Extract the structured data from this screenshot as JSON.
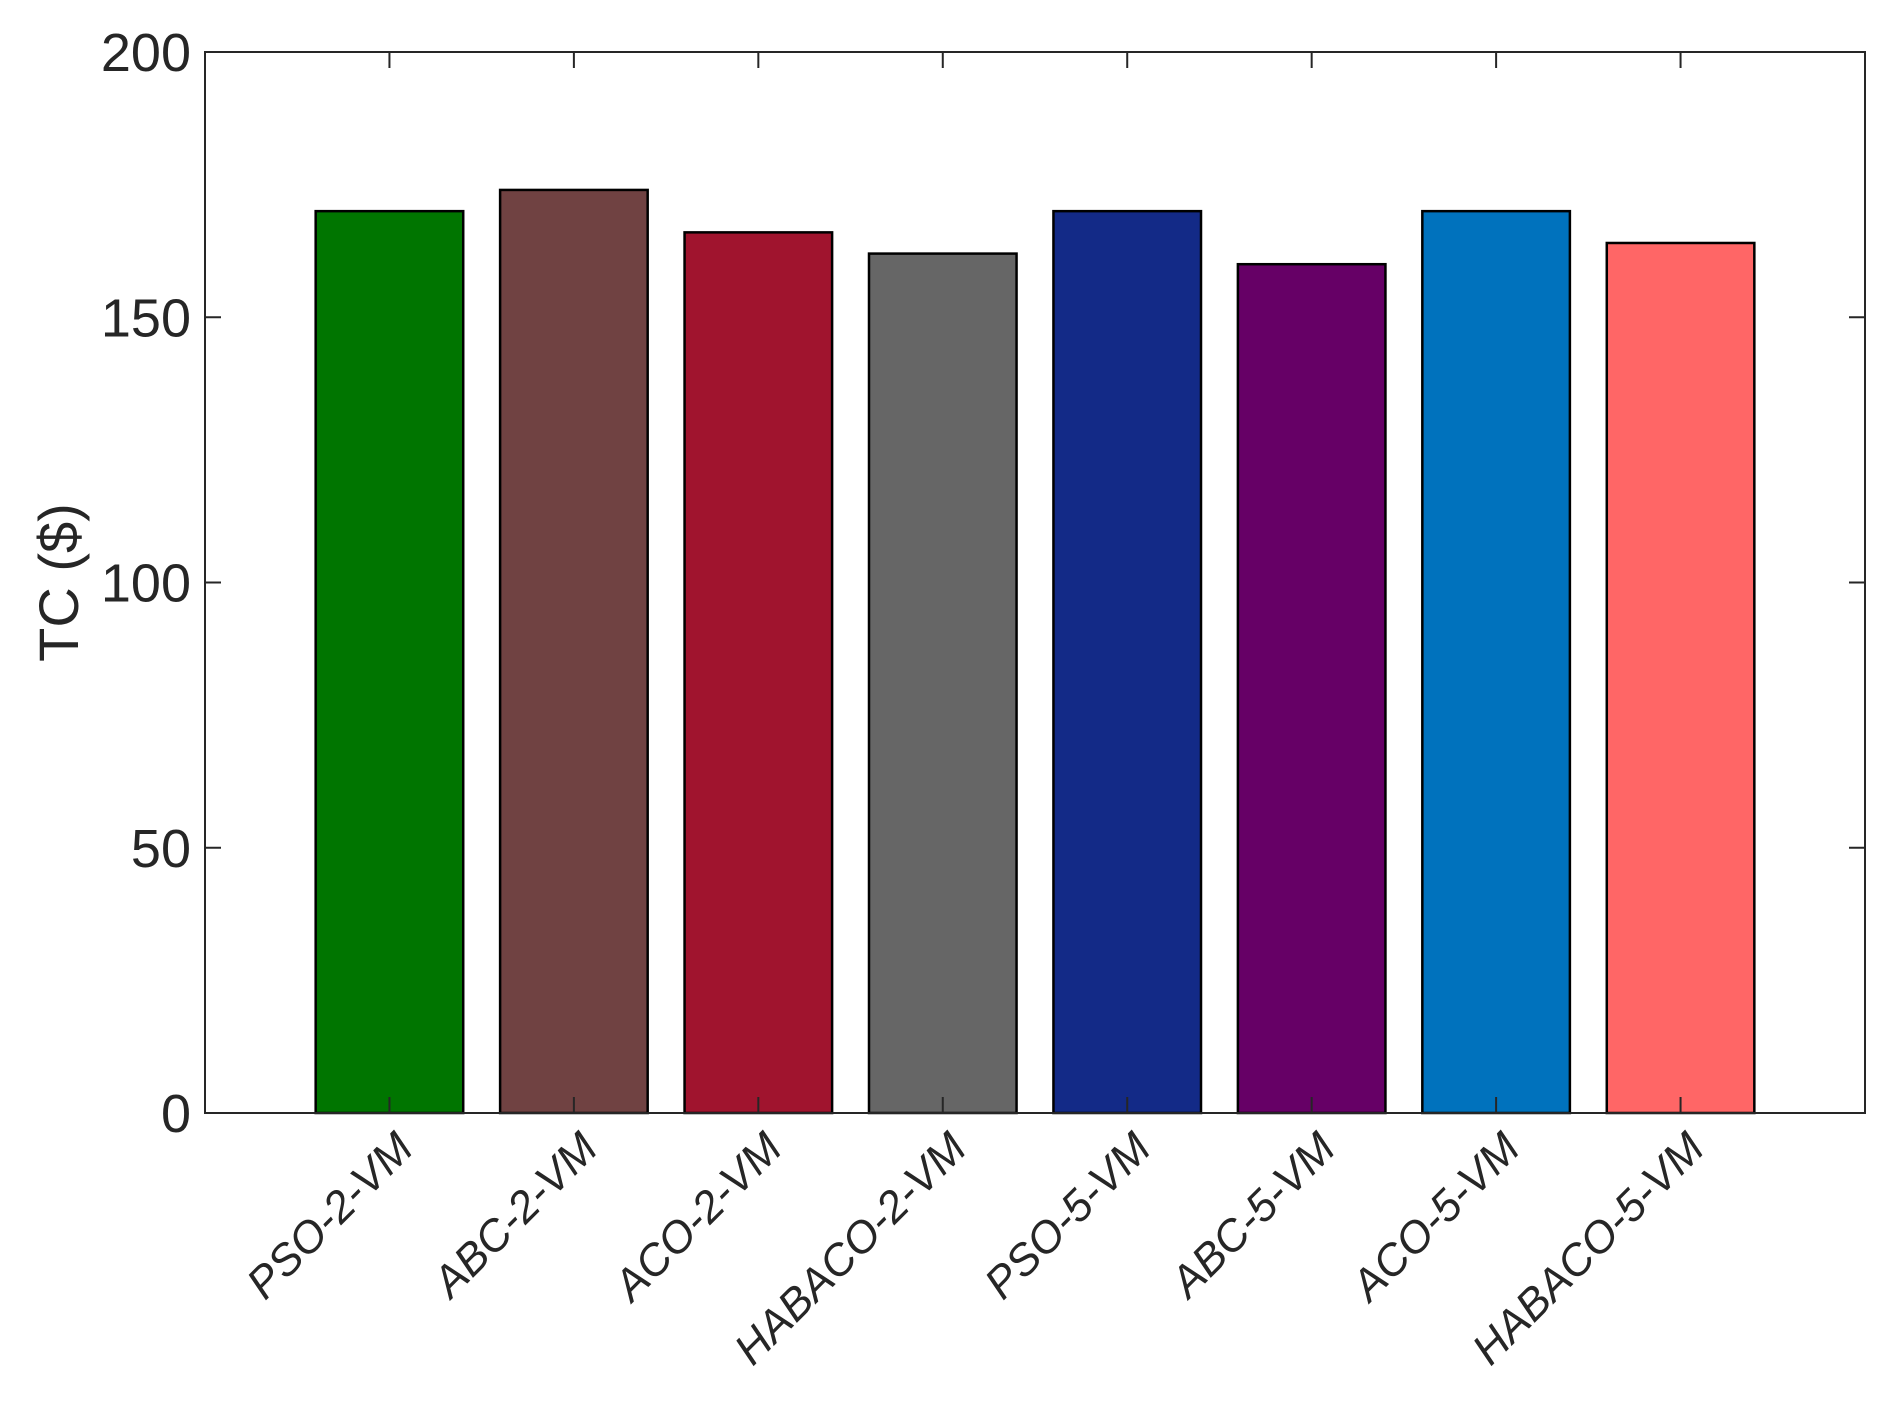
{
  "chart_data": {
    "type": "bar",
    "title": "",
    "xlabel": "",
    "ylabel": "TC ($)",
    "ylim": [
      0,
      200
    ],
    "yticks": [
      0,
      50,
      100,
      150,
      200
    ],
    "grid": false,
    "categories": [
      "PSO-2-VM",
      "ABC-2-VM",
      "ACO-2-VM",
      "HABACO-2-VM",
      "PSO-5-VM",
      "ABC-5-VM",
      "ACO-5-VM",
      "HABACO-5-VM"
    ],
    "values": [
      170,
      174,
      166,
      162,
      170,
      160,
      170,
      164
    ],
    "colors": [
      "#007500",
      "#704242",
      "#A0142E",
      "#666666",
      "#132A87",
      "#660066",
      "#0072BD",
      "#FF6666"
    ],
    "edge_color": "#000000",
    "axis_color": "#262626"
  }
}
